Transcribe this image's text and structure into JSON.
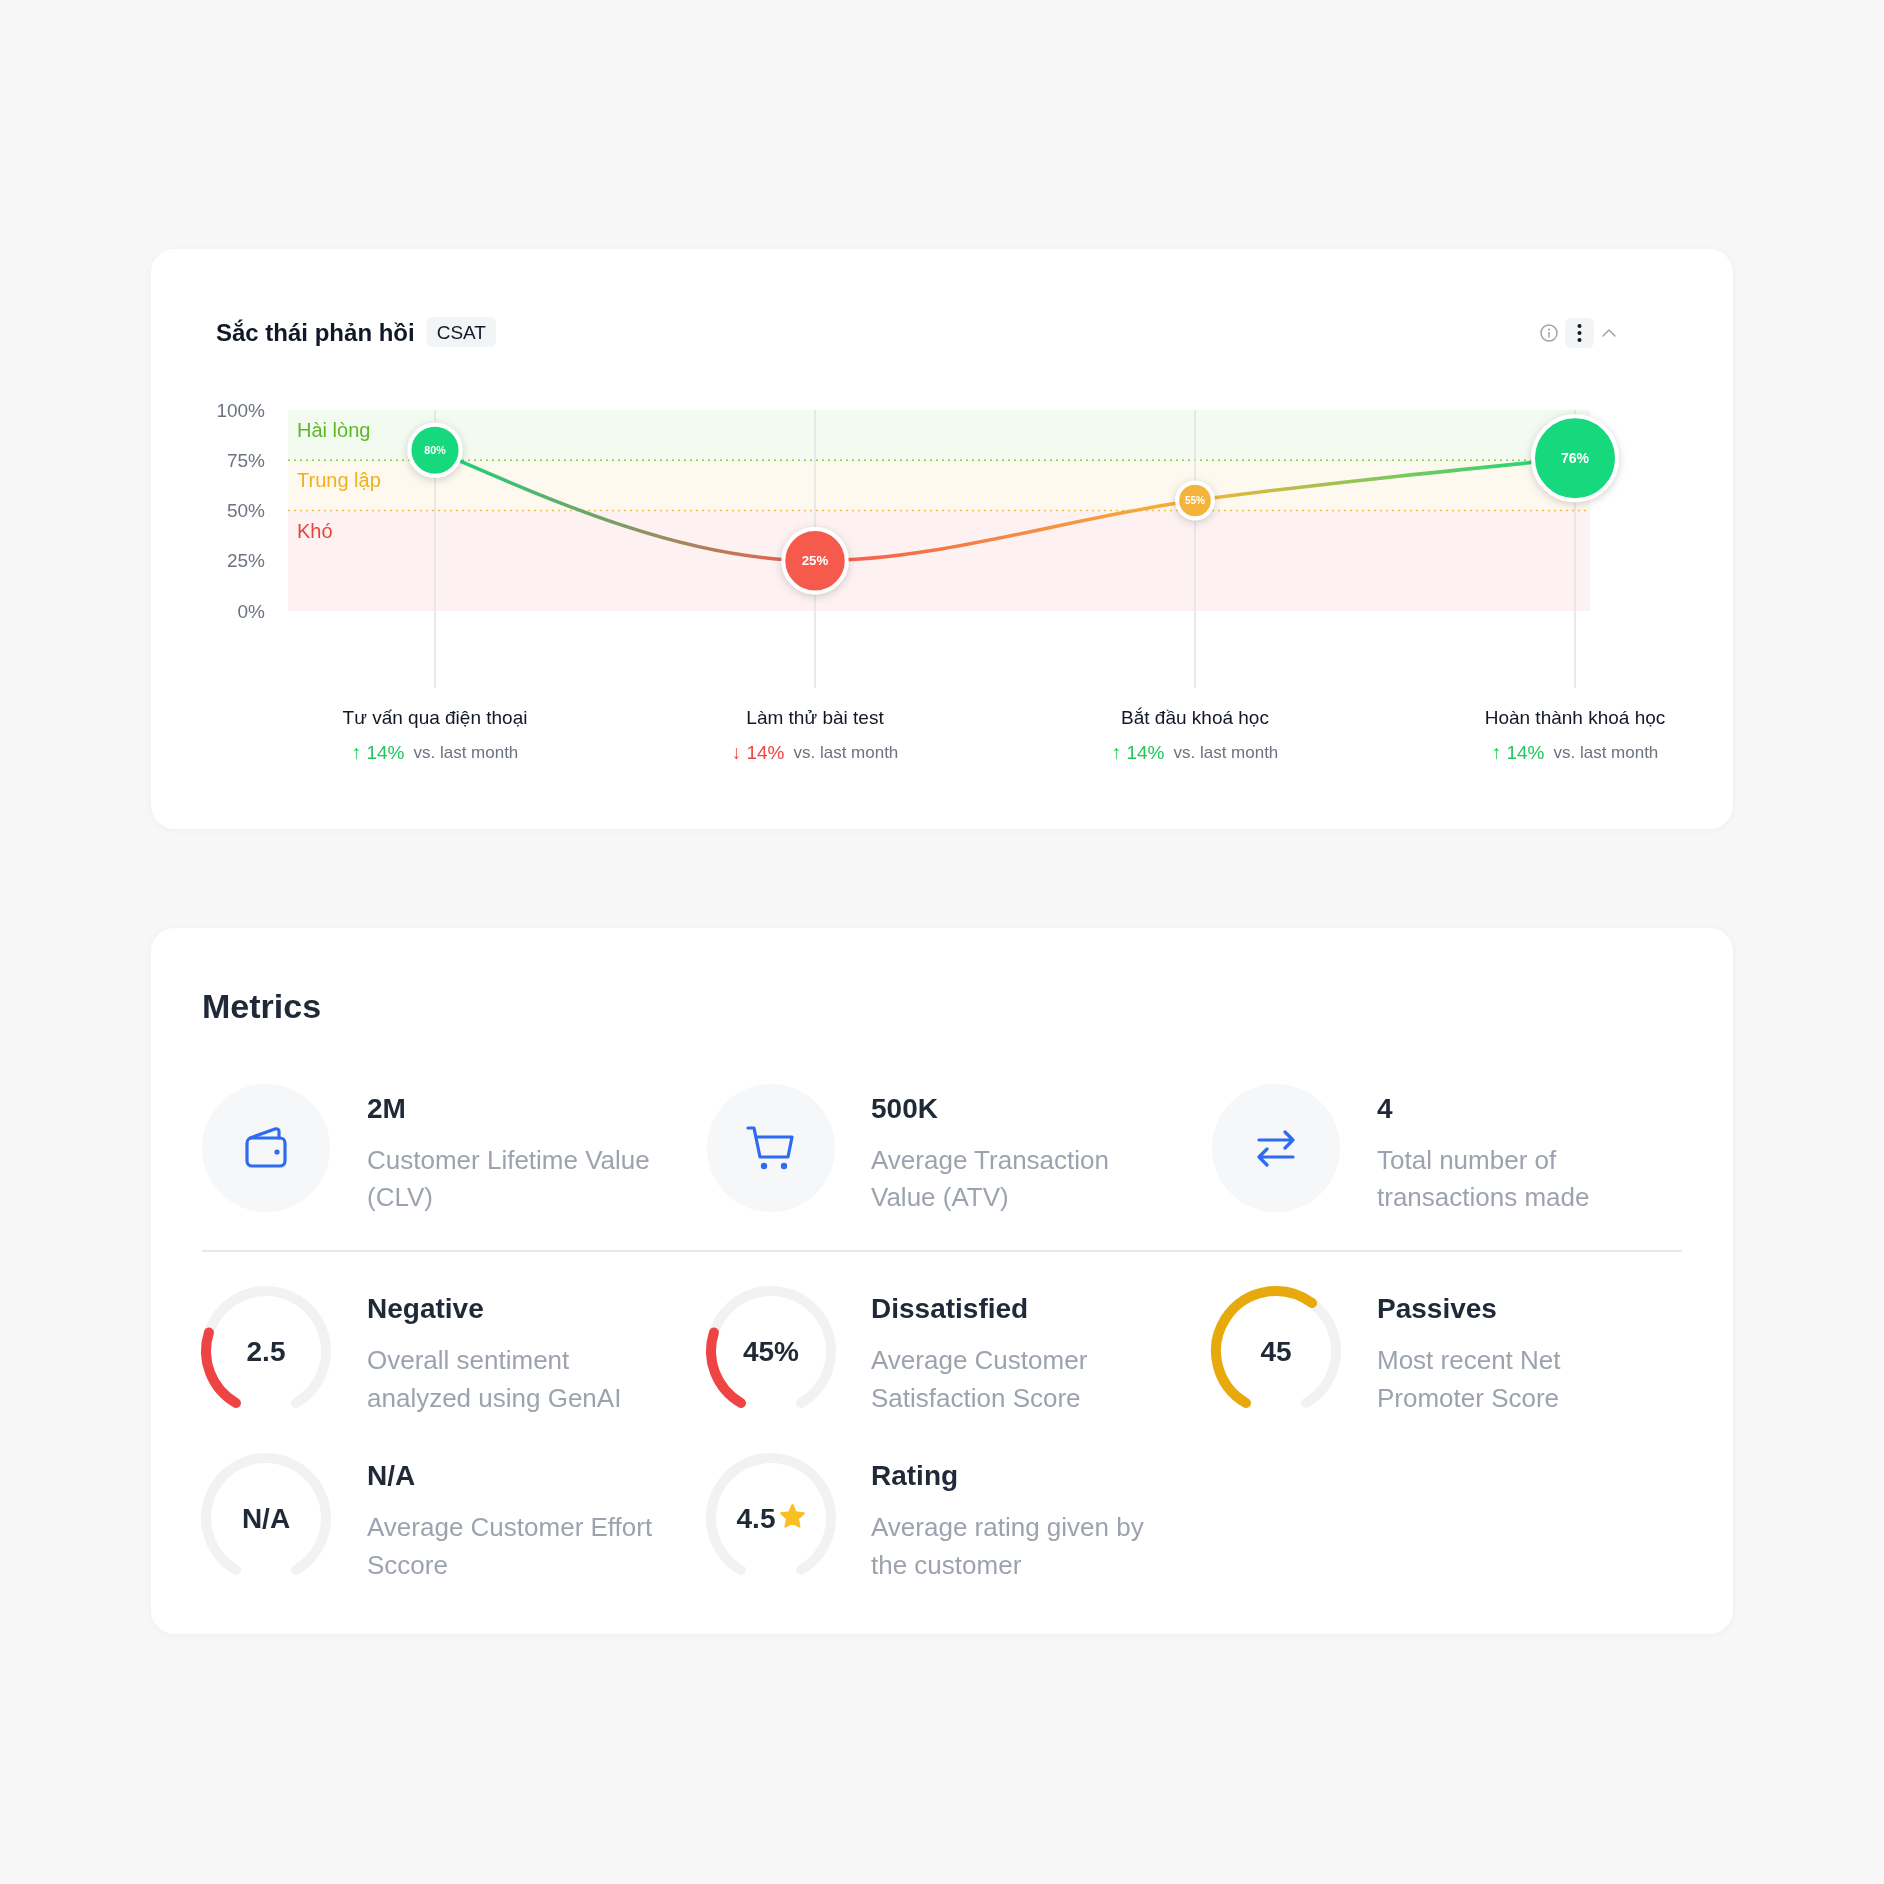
{
  "chart_data": [
    {
      "type": "line",
      "title": "Sắc thái phản hồi",
      "subtitle": "CSAT",
      "categories": [
        "Tư vấn qua điện thoại",
        "Làm thử bài test",
        "Bắt đầu khoá học",
        "Hoàn thành khoá học"
      ],
      "series": [
        {
          "type": "line",
          "colors": [
            "#12d87c",
            "#f55a4e",
            "#f4b43a",
            "#12d87c"
          ],
          "values": [
            80,
            25,
            55,
            76
          ]
        },
        {
          "type": "bubble",
          "colors": [
            "#12d87c",
            "#f55a4e",
            "#f4b43a",
            "#12d87c"
          ],
          "values": [
            80,
            25,
            55,
            76
          ],
          "sizes": [
            0.37,
            0.57,
            0.18,
            1
          ],
          "value_labels": [
            "80%",
            "25%",
            "55%",
            "76%"
          ]
        }
      ],
      "ylim": [
        0,
        100
      ],
      "yticks": [
        {
          "value": 0,
          "label": "0%"
        },
        {
          "value": 25,
          "label": "25%"
        },
        {
          "value": 50,
          "label": "50%"
        },
        {
          "value": 75,
          "label": "75%"
        },
        {
          "value": 100,
          "label": "100%"
        }
      ],
      "bands": [
        {
          "axis": "y",
          "from": 75,
          "to": 100,
          "label": "Hài lòng",
          "color": "#5cb82a"
        },
        {
          "axis": "y",
          "from": 50,
          "to": 75,
          "label": "Trung lập",
          "color": "#f0b020"
        },
        {
          "axis": "y",
          "from": 0,
          "to": 50,
          "label": "Khó",
          "color": "#e8453c"
        }
      ],
      "ref_lines": [
        {
          "axis": "y",
          "value": 75,
          "color": "#7fcc55",
          "line_style": "dotted"
        },
        {
          "axis": "y",
          "value": 50,
          "color": "#f3c04a",
          "line_style": "dotted"
        }
      ],
      "grid": "x",
      "annotations": [
        "↑ 14%",
        "vs. last month",
        "↓ 14%",
        "vs. last month",
        "↑ 14%",
        "vs. last month",
        "↑ 14%",
        "vs. last month"
      ]
    },
    {
      "type": "other",
      "title": "Metrics",
      "annotations": [
        "2M",
        "Customer Lifetime Value (CLV)",
        "500K",
        "Average Transaction Value (ATV)",
        "4",
        "Total number of transactions made",
        "Negative",
        "2.5",
        "Overall sentiment analyzed using GenAI",
        "Dissatisfied",
        "45%",
        "Average Customer Satisfaction Score",
        "Passives",
        "45",
        "Most recent Net Promoter Score",
        "N/A",
        "N/A",
        "Average Customer Effort Sccore",
        "Rating",
        "4.5",
        "Average rating given by the customer"
      ]
    }
  ]
}
